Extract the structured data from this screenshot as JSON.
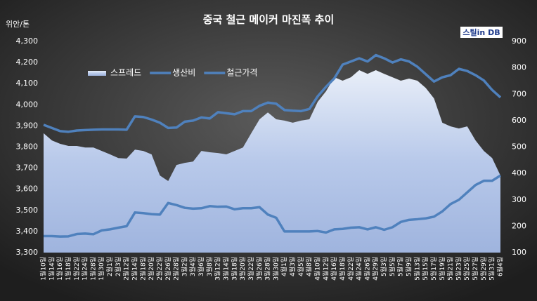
{
  "chart_data": {
    "type": "line",
    "title": "중국 철근 메이커 마진폭 추이",
    "y_axis_label": "위안/톤",
    "logo": "스틸in DB",
    "categories": [
      "1월10일",
      "1월14일",
      "1월16일",
      "1월18일",
      "1월22일",
      "1월24일",
      "1월28일",
      "1월30일",
      "2월1일",
      "2월3일",
      "2월12일",
      "2월14일",
      "2월18일",
      "2월20일",
      "2월22일",
      "2월26일",
      "2월28일",
      "3월2일",
      "3월4일",
      "3월6일",
      "3월8일",
      "3월12일",
      "3월14일",
      "3월18일",
      "3월20일",
      "3월22일",
      "3월26일",
      "3월28일",
      "3월30일",
      "4월1일",
      "4월3일",
      "4월5일",
      "4월8일",
      "4월10일",
      "4월12일",
      "4월16일",
      "4월18일",
      "4월22일",
      "4월24일",
      "4월26일",
      "4월29일",
      "5월3일",
      "5월5일",
      "5월7일",
      "5월9일",
      "5월13일",
      "5월15일",
      "5월17일",
      "5월19일",
      "5월21일",
      "5월23일",
      "5월25일",
      "5월27일",
      "5월29일",
      "5월31일",
      "6월4일"
    ],
    "series": [
      {
        "name": "스프레드",
        "color": "#b8c9ea",
        "axis": "y2",
        "values": [
          552,
          525,
          512,
          504,
          504,
          498,
          498,
          485,
          472,
          458,
          456,
          490,
          485,
          472,
          392,
          371,
          432,
          440,
          445,
          485,
          480,
          477,
          472,
          485,
          498,
          552,
          605,
          631,
          605,
          600,
          592,
          600,
          605,
          671,
          711,
          764,
          751,
          764,
          791,
          777,
          791,
          777,
          764,
          751,
          759,
          751,
          724,
          684,
          592,
          578,
          570,
          578,
          525,
          485,
          458,
          392
        ]
      },
      {
        "name": "생산비",
        "color": "#4f81bd",
        "values": [
          3378,
          3378,
          3376,
          3377,
          3388,
          3390,
          3387,
          3405,
          3410,
          3418,
          3425,
          3490,
          3487,
          3482,
          3480,
          3535,
          3525,
          3512,
          3508,
          3510,
          3520,
          3517,
          3518,
          3505,
          3510,
          3510,
          3515,
          3480,
          3465,
          3400,
          3400,
          3400,
          3400,
          3402,
          3395,
          3410,
          3412,
          3418,
          3420,
          3410,
          3420,
          3408,
          3420,
          3445,
          3455,
          3458,
          3462,
          3470,
          3495,
          3530,
          3550,
          3585,
          3620,
          3640,
          3640,
          3665
        ]
      },
      {
        "name": "철근가격",
        "color": "#4f81bd",
        "values": [
          3905,
          3890,
          3875,
          3872,
          3878,
          3880,
          3882,
          3883,
          3883,
          3883,
          3882,
          3945,
          3942,
          3930,
          3915,
          3890,
          3892,
          3920,
          3925,
          3940,
          3935,
          3965,
          3960,
          3955,
          3970,
          3970,
          3995,
          4010,
          4005,
          3975,
          3972,
          3970,
          3980,
          4040,
          4085,
          4125,
          4190,
          4205,
          4220,
          4205,
          4235,
          4220,
          4200,
          4215,
          4205,
          4180,
          4145,
          4110,
          4130,
          4140,
          4170,
          4160,
          4140,
          4115,
          4070,
          4035
        ]
      }
    ],
    "ylim": [
      3300,
      4300
    ],
    "yticks": [
      {
        "value": 3300,
        "label": "3,300"
      },
      {
        "value": 3400,
        "label": "3,400"
      },
      {
        "value": 3500,
        "label": "3,500"
      },
      {
        "value": 3600,
        "label": "3,600"
      },
      {
        "value": 3700,
        "label": "3,700"
      },
      {
        "value": 3800,
        "label": "3,800"
      },
      {
        "value": 3900,
        "label": "3,900"
      },
      {
        "value": 4000,
        "label": "4,000"
      },
      {
        "value": 4100,
        "label": "4,100"
      },
      {
        "value": 4200,
        "label": "4,200"
      },
      {
        "value": 4300,
        "label": "4,300"
      }
    ],
    "y2lim": [
      100,
      900
    ],
    "y2ticks": [
      100,
      200,
      300,
      400,
      500,
      600,
      700,
      800,
      900
    ]
  }
}
